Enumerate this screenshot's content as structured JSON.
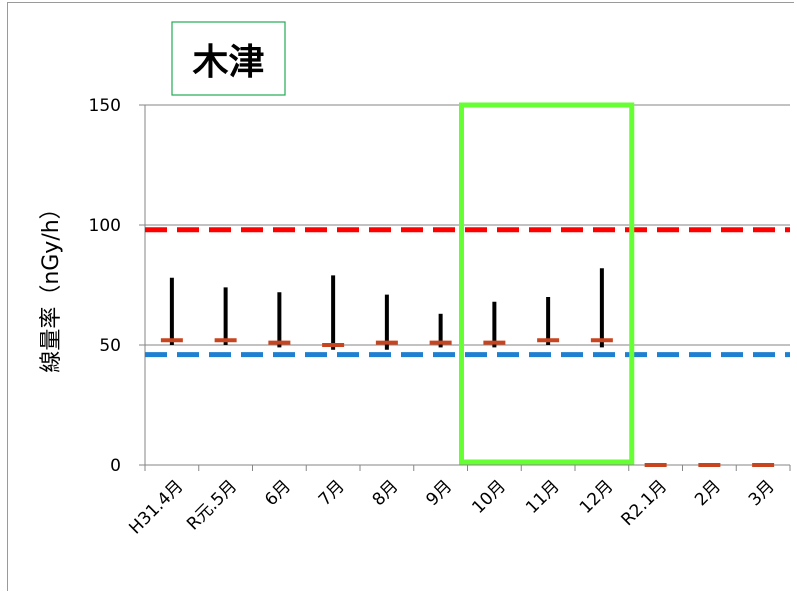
{
  "chart_data": {
    "type": "line",
    "title": "木津",
    "xlabel": "",
    "ylabel": "線量率（nGy/h）",
    "ylim": [
      0,
      150
    ],
    "yticks": [
      0,
      50,
      100,
      150
    ],
    "categories": [
      "H31.4月",
      "R元.5月",
      "6月",
      "7月",
      "8月",
      "9月",
      "10月",
      "11月",
      "12月",
      "R2.1月",
      "2月",
      "3月"
    ],
    "mean": [
      52,
      52,
      51,
      50,
      51,
      51,
      51,
      52,
      52,
      0,
      0,
      0
    ],
    "min": [
      50,
      50,
      49,
      48,
      48,
      49,
      49,
      50,
      49,
      0,
      0,
      0
    ],
    "max": [
      78,
      74,
      72,
      79,
      71,
      63,
      68,
      70,
      82,
      0,
      0,
      0
    ],
    "reference_lines": [
      {
        "value": 98,
        "color": "#ff0000",
        "style": "dashed"
      },
      {
        "value": 46,
        "color": "#1f7fd1",
        "style": "dashed"
      }
    ],
    "highlight": {
      "from": "10月",
      "to": "12月",
      "color": "#66ff33"
    },
    "colors": {
      "range": "#000000",
      "mean": "#c8441e",
      "title_box": "#22aa55"
    },
    "grid": true
  }
}
